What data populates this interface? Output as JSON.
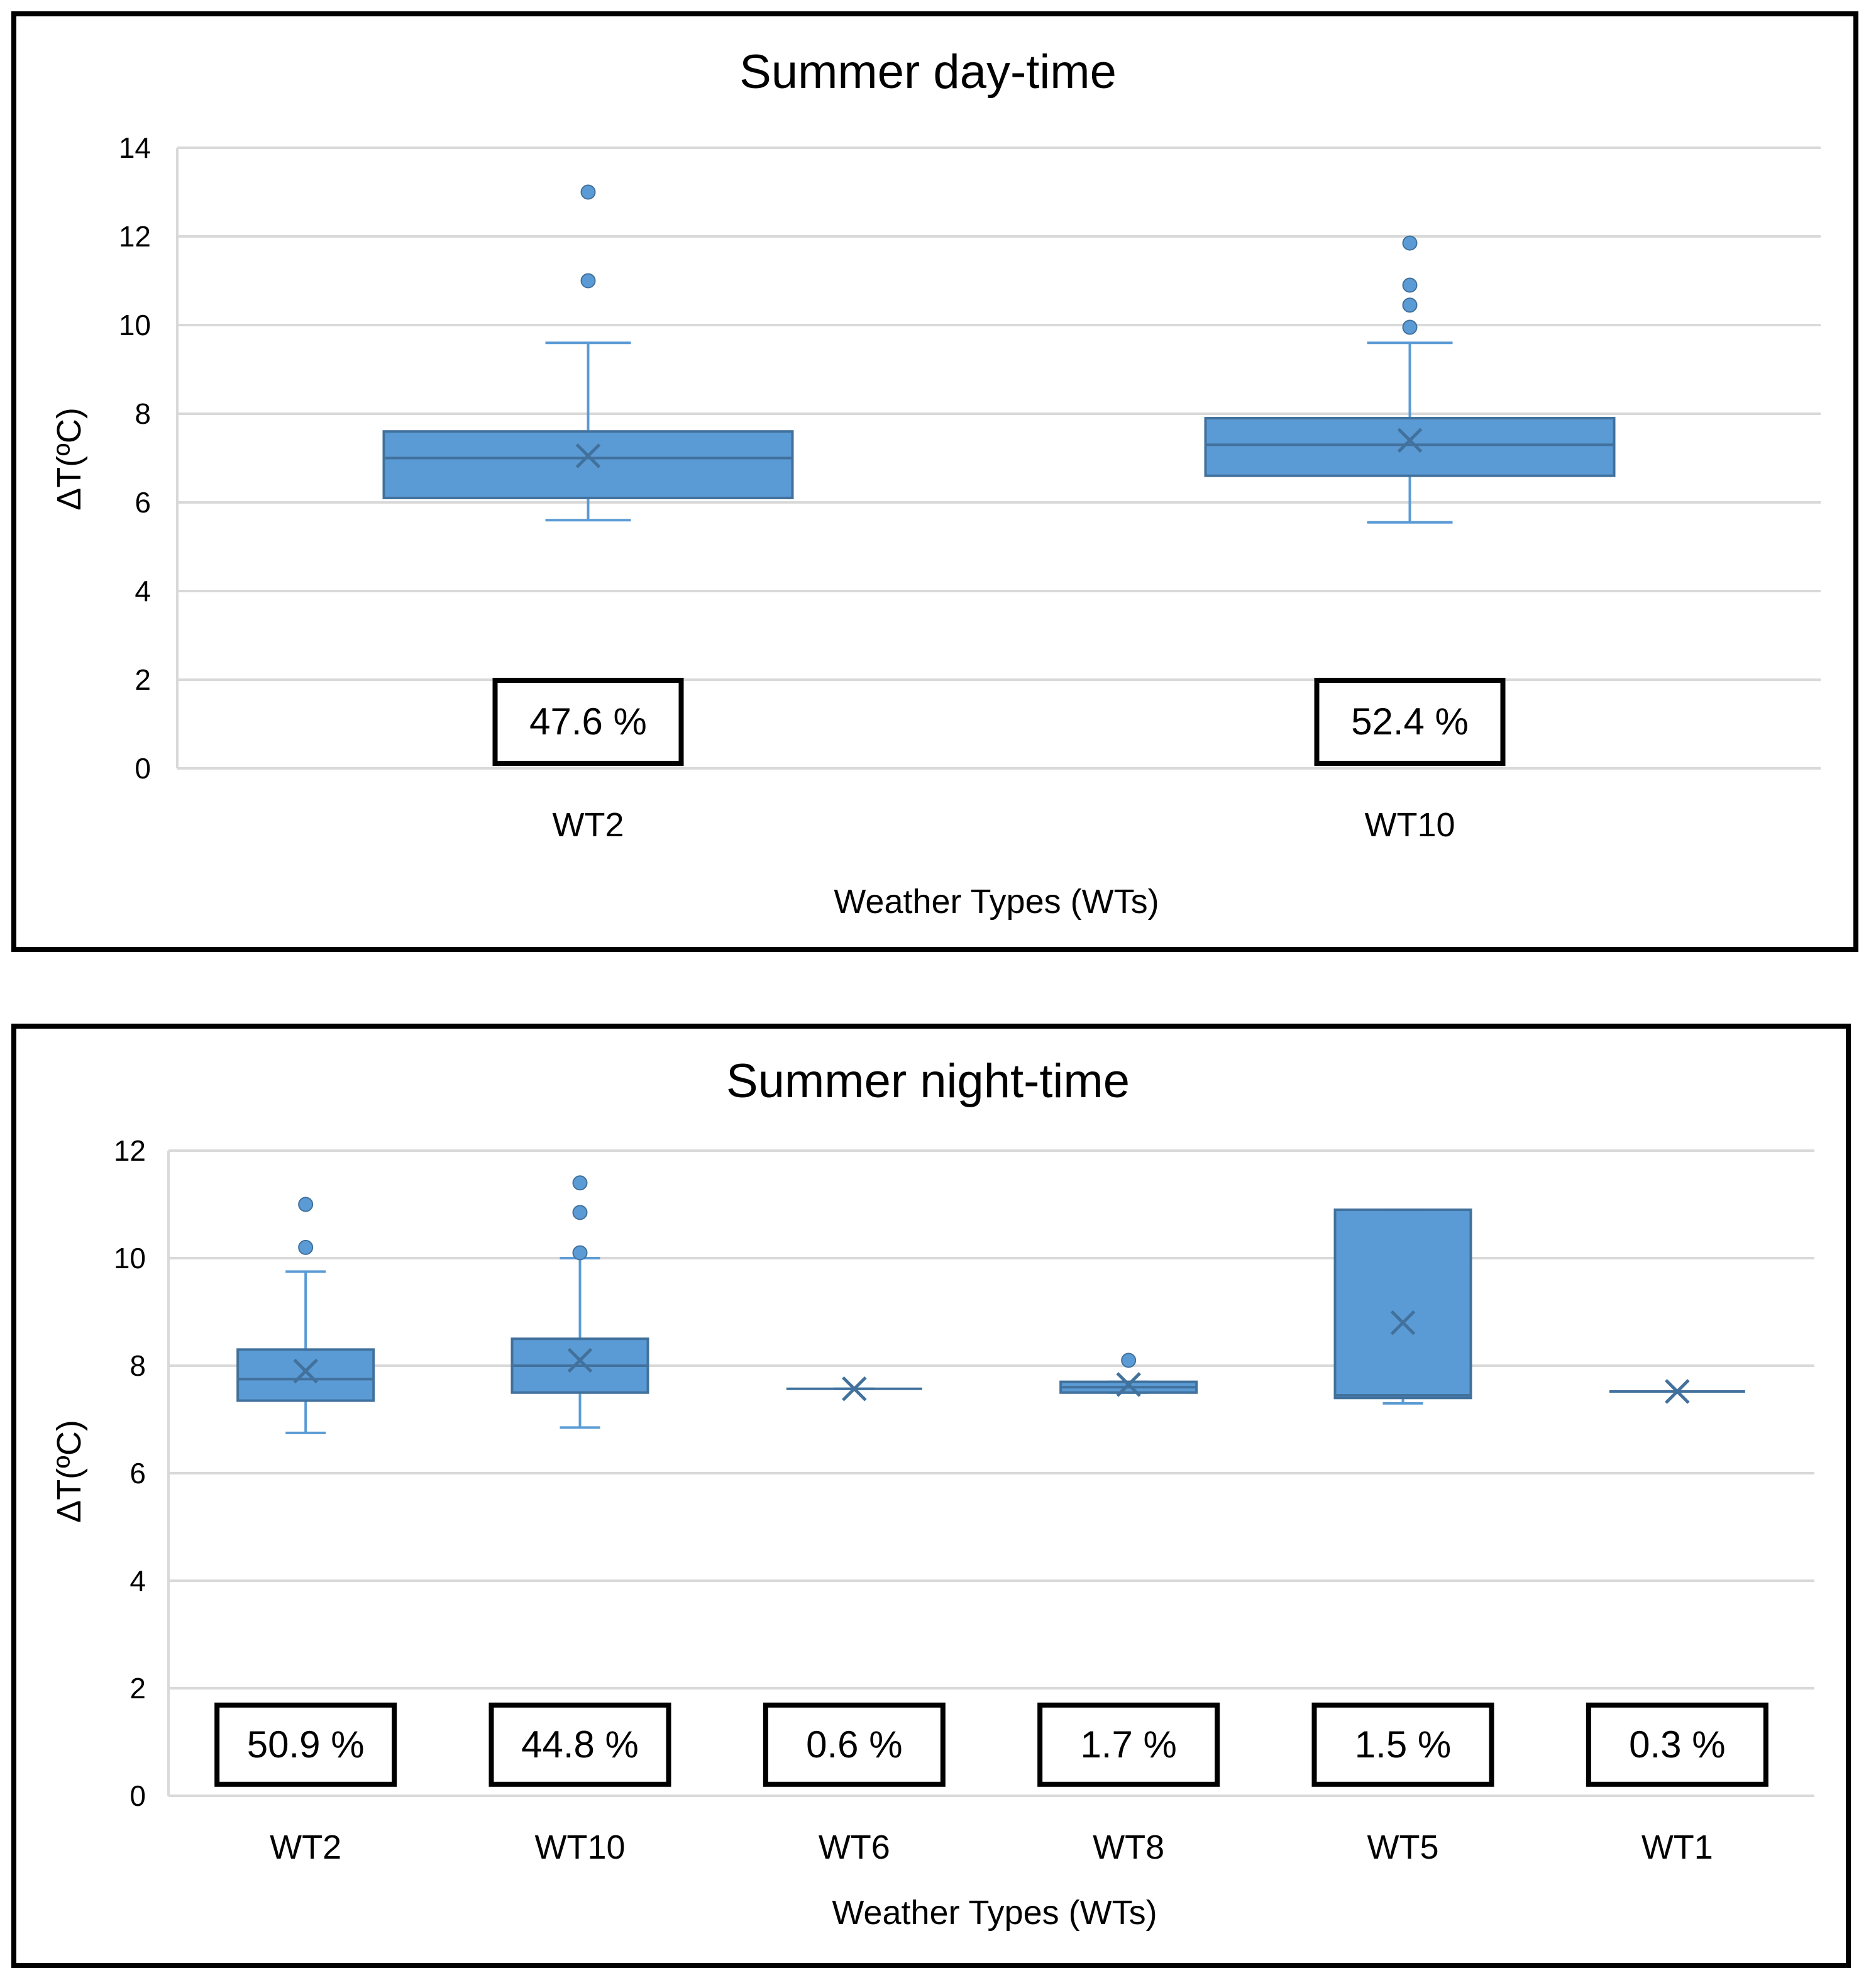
{
  "colors": {
    "box": "#5B9BD5",
    "box_stroke": "#41719C",
    "grid": "#D9D9D9",
    "frame": "#000000"
  },
  "chart_data": [
    {
      "type": "box",
      "title": "Summer day-time",
      "xlabel": "Weather Types (WTs)",
      "ylabel": "ΔT(ºC)",
      "ylim": [
        0,
        14
      ],
      "yticks": [
        "0",
        "2",
        "4",
        "6",
        "8",
        "10",
        "12",
        "14"
      ],
      "grid": true,
      "categories": [
        {
          "name": "WT2",
          "percentage": "47.6 %",
          "min": 5.6,
          "q1": 6.1,
          "median": 7.0,
          "q3": 7.6,
          "max": 9.6,
          "mean": 7.05,
          "outliers": [
            11.0,
            13.0
          ]
        },
        {
          "name": "WT10",
          "percentage": "52.4 %",
          "min": 5.55,
          "q1": 6.6,
          "median": 7.3,
          "q3": 7.9,
          "max": 9.6,
          "mean": 7.4,
          "outliers": [
            9.95,
            10.45,
            10.9,
            11.85
          ]
        }
      ]
    },
    {
      "type": "box",
      "title": "Summer night-time",
      "xlabel": "Weather Types (WTs)",
      "ylabel": "ΔT(ºC)",
      "ylim": [
        0,
        12
      ],
      "yticks": [
        "0",
        "2",
        "4",
        "6",
        "8",
        "10",
        "12"
      ],
      "grid": true,
      "categories": [
        {
          "name": "WT2",
          "percentage": "50.9 %",
          "min": 6.75,
          "q1": 7.35,
          "median": 7.75,
          "q3": 8.3,
          "max": 9.75,
          "mean": 7.9,
          "outliers": [
            10.2,
            11.0
          ]
        },
        {
          "name": "WT10",
          "percentage": "44.8 %",
          "min": 6.85,
          "q1": 7.5,
          "median": 8.0,
          "q3": 8.5,
          "max": 10.0,
          "mean": 8.1,
          "outliers": [
            10.1,
            10.85,
            11.4
          ]
        },
        {
          "name": "WT6",
          "percentage": "0.6 %",
          "min": 7.57,
          "q1": 7.57,
          "median": 7.57,
          "q3": 7.57,
          "max": 7.57,
          "mean": 7.57,
          "outliers": []
        },
        {
          "name": "WT8",
          "percentage": "1.7 %",
          "min": 7.5,
          "q1": 7.5,
          "median": 7.6,
          "q3": 7.7,
          "max": 7.7,
          "mean": 7.65,
          "outliers": [
            8.1
          ]
        },
        {
          "name": "WT5",
          "percentage": "1.5 %",
          "min": 7.3,
          "q1": 7.4,
          "median": 7.45,
          "q3": 10.9,
          "max": 10.9,
          "mean": 8.8,
          "outliers": []
        },
        {
          "name": "WT1",
          "percentage": "0.3 %",
          "min": 7.52,
          "q1": 7.52,
          "median": 7.52,
          "q3": 7.52,
          "max": 7.52,
          "mean": 7.52,
          "outliers": []
        }
      ]
    }
  ]
}
